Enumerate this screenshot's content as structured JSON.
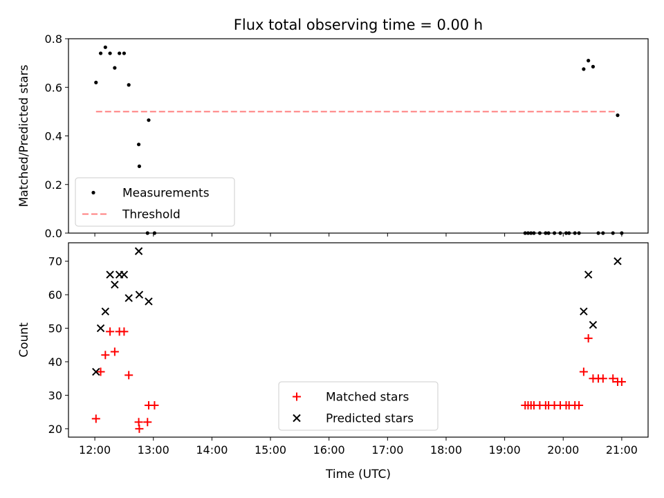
{
  "figure_title": "Flux total observing time = 0.00 h",
  "chart_data": [
    {
      "type": "scatter",
      "panel": "top",
      "title": "Flux total observing time = 0.00 h",
      "xlabel": "",
      "ylabel": "Matched/Predicted stars",
      "xlim": [
        11.55,
        21.45
      ],
      "ylim": [
        0,
        0.8
      ],
      "yticks": [
        0.0,
        0.2,
        0.4,
        0.6,
        0.8
      ],
      "ytick_labels": [
        "0.0",
        "0.2",
        "0.4",
        "0.6",
        "0.8"
      ],
      "xticks": [
        12,
        13,
        14,
        15,
        16,
        17,
        18,
        19,
        20,
        21
      ],
      "grid": false,
      "legend": {
        "placement": "lower-left",
        "entries": [
          "Measurements",
          "Threshold"
        ]
      },
      "series": [
        {
          "name": "Measurements",
          "marker": "dot",
          "color": "#000000",
          "x": [
            12.02,
            12.1,
            12.18,
            12.26,
            12.34,
            12.42,
            12.5,
            12.58,
            12.75,
            12.76,
            12.92,
            12.9,
            13.02,
            19.35,
            19.4,
            19.45,
            19.5,
            19.6,
            19.7,
            19.75,
            19.85,
            19.95,
            20.05,
            20.1,
            20.2,
            20.27,
            20.35,
            20.43,
            20.51,
            20.6,
            20.68,
            20.85,
            20.93,
            21.0
          ],
          "y": [
            0.62,
            0.74,
            0.765,
            0.74,
            0.68,
            0.74,
            0.74,
            0.61,
            0.365,
            0.275,
            0.465,
            0.0,
            0.0,
            0.0,
            0.0,
            0.0,
            0.0,
            0.0,
            0.0,
            0.0,
            0.0,
            0.0,
            0.0,
            0.0,
            0.0,
            0.0,
            0.675,
            0.71,
            0.685,
            0.0,
            0.0,
            0.0,
            0.485,
            0.0
          ]
        },
        {
          "name": "Threshold",
          "style": "dashed",
          "color": "#ff7f7f",
          "x": [
            12.02,
            20.93
          ],
          "y": [
            0.5,
            0.5
          ]
        }
      ]
    },
    {
      "type": "scatter",
      "panel": "bottom",
      "xlabel": "Time (UTC)",
      "ylabel": "Count",
      "xlim": [
        11.55,
        21.45
      ],
      "ylim": [
        17.5,
        75.5
      ],
      "yticks": [
        20,
        30,
        40,
        50,
        60,
        70
      ],
      "ytick_labels": [
        "20",
        "30",
        "40",
        "50",
        "60",
        "70"
      ],
      "xticks": [
        12,
        13,
        14,
        15,
        16,
        17,
        18,
        19,
        20,
        21
      ],
      "xtick_labels": [
        "12:00",
        "13:00",
        "14:00",
        "15:00",
        "16:00",
        "17:00",
        "18:00",
        "19:00",
        "20:00",
        "21:00"
      ],
      "grid": false,
      "legend": {
        "placement": "lower-center",
        "entries": [
          "Matched stars",
          "Predicted stars"
        ]
      },
      "series": [
        {
          "name": "Matched stars",
          "marker": "plus",
          "color": "#ff0000",
          "x": [
            12.02,
            12.1,
            12.18,
            12.26,
            12.34,
            12.42,
            12.5,
            12.58,
            12.75,
            12.76,
            12.9,
            12.92,
            13.02,
            19.35,
            19.4,
            19.45,
            19.5,
            19.6,
            19.7,
            19.75,
            19.85,
            19.95,
            20.05,
            20.1,
            20.2,
            20.27,
            20.35,
            20.43,
            20.51,
            20.6,
            20.68,
            20.85,
            20.93,
            21.0
          ],
          "y": [
            23,
            37,
            42,
            49,
            43,
            49,
            49,
            36,
            22,
            20,
            22,
            27,
            27,
            27,
            27,
            27,
            27,
            27,
            27,
            27,
            27,
            27,
            27,
            27,
            27,
            27,
            37,
            47,
            35,
            35,
            35,
            35,
            34,
            34
          ]
        },
        {
          "name": "Predicted stars",
          "marker": "x",
          "color": "#000000",
          "x": [
            12.02,
            12.1,
            12.18,
            12.26,
            12.34,
            12.42,
            12.5,
            12.58,
            12.75,
            12.76,
            12.92,
            20.35,
            20.43,
            20.51,
            20.93
          ],
          "y": [
            37,
            50,
            55,
            66,
            63,
            66,
            66,
            59,
            73,
            60,
            58,
            55,
            66,
            51,
            70
          ]
        }
      ]
    }
  ]
}
